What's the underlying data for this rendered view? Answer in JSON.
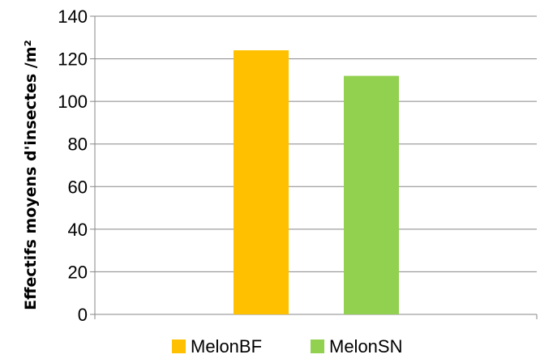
{
  "chart_data": {
    "type": "bar",
    "title": "",
    "xlabel": "",
    "ylabel": "Effectifs moyens d'insectes /m²",
    "ylim": [
      0,
      140
    ],
    "yticks": [
      0,
      20,
      40,
      60,
      80,
      100,
      120,
      140
    ],
    "grid": true,
    "legend_position": "bottom",
    "categories": [
      ""
    ],
    "series": [
      {
        "name": "MelonBF",
        "values": [
          124
        ],
        "color": "#FFC000"
      },
      {
        "name": "MelonSN",
        "values": [
          112
        ],
        "color": "#92D050"
      }
    ]
  }
}
